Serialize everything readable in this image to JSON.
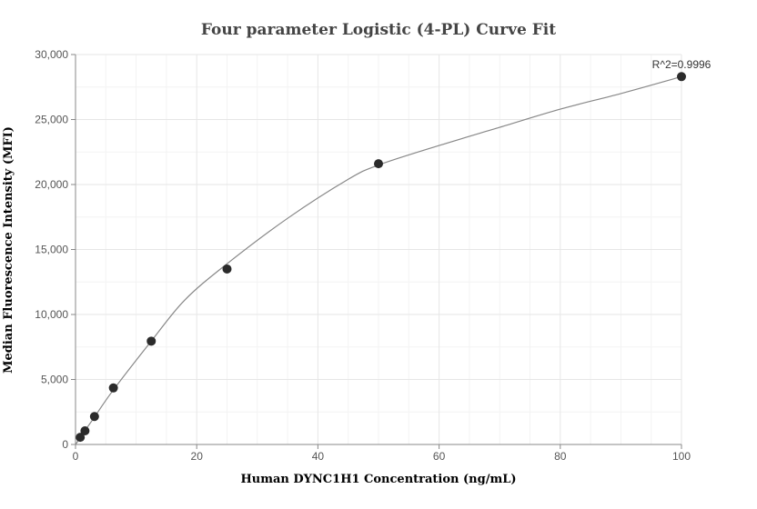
{
  "chart_data": {
    "type": "scatter",
    "title": "Four parameter Logistic (4-PL) Curve Fit",
    "xlabel": "Human DYNC1H1 Concentration (ng/mL)",
    "ylabel": "Median Fluorescence Intensity (MFI)",
    "xlim": [
      0,
      100
    ],
    "ylim": [
      0,
      30000
    ],
    "x_ticks": [
      0,
      20,
      40,
      60,
      80,
      100
    ],
    "y_ticks": [
      0,
      5000,
      10000,
      15000,
      20000,
      25000,
      30000
    ],
    "x_tick_labels": [
      "0",
      "20",
      "40",
      "60",
      "80",
      "100"
    ],
    "y_tick_labels": [
      "0",
      "5,000",
      "10,000",
      "15,000",
      "20,000",
      "25,000",
      "30,000"
    ],
    "grid": true,
    "series": [
      {
        "x": [
          0.78,
          1.56,
          3.13,
          6.25,
          12.5,
          25,
          50,
          100
        ],
        "y": [
          550,
          1050,
          2150,
          4350,
          7950,
          13500,
          21600,
          28300
        ]
      }
    ],
    "fit_curve": {
      "model": "4PL",
      "x": [
        0,
        0.78,
        1.56,
        3.13,
        6.25,
        12.5,
        18,
        25,
        35,
        45,
        50,
        60,
        70,
        80,
        90,
        100
      ],
      "y": [
        0,
        530,
        1060,
        2110,
        4200,
        7950,
        11100,
        13900,
        17400,
        20400,
        21500,
        23000,
        24400,
        25800,
        27000,
        28300
      ]
    },
    "annotations": [
      "R^2=0.9996"
    ],
    "colors": {
      "points": "#2b2b2b",
      "curve": "#888888",
      "grid": "#e6e6e6"
    }
  }
}
